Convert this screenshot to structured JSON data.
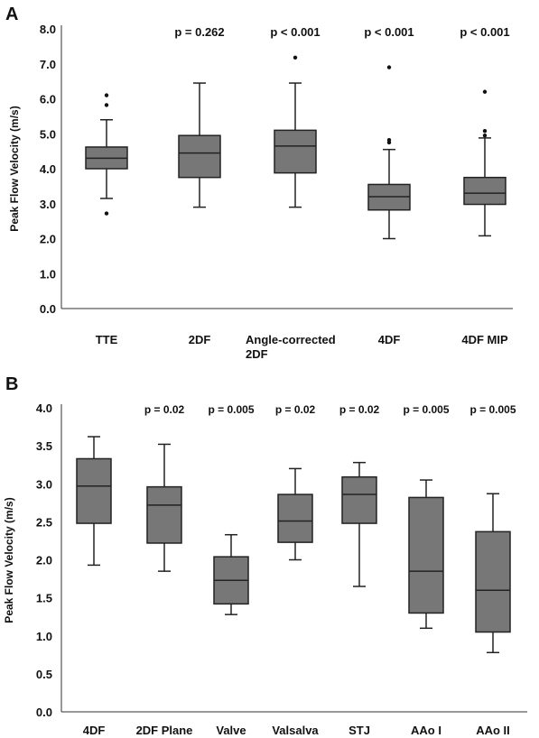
{
  "chart_data": [
    {
      "panel_label": "A",
      "type": "box",
      "ylabel": "Peak Flow Velocity (m/s)",
      "ylim": [
        0,
        8
      ],
      "yticks": [
        "0.0",
        "1.0",
        "2.0",
        "3.0",
        "4.0",
        "5.0",
        "6.0",
        "7.0",
        "8.0"
      ],
      "grid": false,
      "box_color": "#777777",
      "categories": [
        {
          "label": "TTE",
          "p": "",
          "whisker_low": 3.15,
          "q1": 4.0,
          "median": 4.3,
          "q3": 4.62,
          "whisker_high": 5.4,
          "outliers": [
            2.72,
            5.82,
            6.1
          ]
        },
        {
          "label": "2DF",
          "p": "p = 0.262",
          "whisker_low": 2.9,
          "q1": 3.75,
          "median": 4.45,
          "q3": 4.95,
          "whisker_high": 6.45,
          "outliers": []
        },
        {
          "label": "Angle-corrected\n2DF",
          "p": "p < 0.001",
          "whisker_low": 2.9,
          "q1": 3.88,
          "median": 4.65,
          "q3": 5.1,
          "whisker_high": 6.45,
          "outliers": [
            7.18
          ]
        },
        {
          "label": "4DF",
          "p": "p < 0.001",
          "whisker_low": 2.0,
          "q1": 2.82,
          "median": 3.2,
          "q3": 3.55,
          "whisker_high": 4.55,
          "outliers": [
            4.75,
            4.82,
            6.9
          ]
        },
        {
          "label": "4DF MIP",
          "p": "p < 0.001",
          "whisker_low": 2.08,
          "q1": 2.98,
          "median": 3.3,
          "q3": 3.75,
          "whisker_high": 4.88,
          "outliers": [
            4.95,
            5.08,
            6.2
          ]
        }
      ]
    },
    {
      "panel_label": "B",
      "type": "box",
      "ylabel": "Peak Flow Velocity (m/s)",
      "ylim": [
        0,
        4
      ],
      "yticks": [
        "0.0",
        "0.5",
        "1.0",
        "1.5",
        "2.0",
        "2.5",
        "3.0",
        "3.5",
        "4.0"
      ],
      "grid": false,
      "box_color": "#777777",
      "categories": [
        {
          "label": "4DF",
          "p": "",
          "whisker_low": 1.93,
          "q1": 2.48,
          "median": 2.97,
          "q3": 3.33,
          "whisker_high": 3.62,
          "outliers": []
        },
        {
          "label": "2DF Plane",
          "p": "p = 0.02",
          "whisker_low": 1.85,
          "q1": 2.22,
          "median": 2.72,
          "q3": 2.96,
          "whisker_high": 3.52,
          "outliers": []
        },
        {
          "label": "Valve",
          "p": "p = 0.005",
          "whisker_low": 1.28,
          "q1": 1.42,
          "median": 1.73,
          "q3": 2.04,
          "whisker_high": 2.33,
          "outliers": []
        },
        {
          "label": "Valsalva",
          "p": "p = 0.02",
          "whisker_low": 2.0,
          "q1": 2.23,
          "median": 2.51,
          "q3": 2.86,
          "whisker_high": 3.2,
          "outliers": []
        },
        {
          "label": "STJ",
          "p": "p = 0.02",
          "whisker_low": 1.65,
          "q1": 2.48,
          "median": 2.86,
          "q3": 3.09,
          "whisker_high": 3.28,
          "outliers": []
        },
        {
          "label": "AAo I",
          "p": "p = 0.005",
          "whisker_low": 1.1,
          "q1": 1.3,
          "median": 1.85,
          "q3": 2.82,
          "whisker_high": 3.05,
          "outliers": []
        },
        {
          "label": "AAo II",
          "p": "p = 0.005",
          "whisker_low": 0.78,
          "q1": 1.05,
          "median": 1.6,
          "q3": 2.37,
          "whisker_high": 2.87,
          "outliers": []
        }
      ]
    }
  ]
}
